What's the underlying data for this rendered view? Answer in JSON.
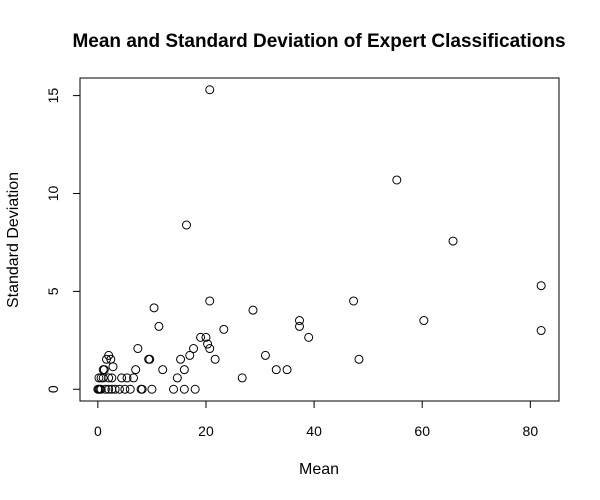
{
  "chart_data": {
    "type": "scatter",
    "title": "Mean and Standard Deviation of Expert Classifications",
    "xlabel": "Mean",
    "ylabel": "Standard Deviation",
    "xlim": [
      -3.3,
      85.3
    ],
    "ylim": [
      -0.6,
      15.9
    ],
    "xticks": [
      0,
      20,
      40,
      60,
      80
    ],
    "yticks": [
      0,
      5,
      10,
      15
    ],
    "grid": false,
    "legend": "none",
    "points": [
      {
        "x": 0,
        "y": 0
      },
      {
        "x": 0.2,
        "y": 0
      },
      {
        "x": 0.4,
        "y": 0
      },
      {
        "x": 0.6,
        "y": 0
      },
      {
        "x": 0.2,
        "y": 0.58
      },
      {
        "x": 0.6,
        "y": 0.58
      },
      {
        "x": 1.0,
        "y": 0.58
      },
      {
        "x": 1.0,
        "y": 1.0
      },
      {
        "x": 1.2,
        "y": 1.0
      },
      {
        "x": 1.4,
        "y": 0
      },
      {
        "x": 2.0,
        "y": 0
      },
      {
        "x": 2.6,
        "y": 0
      },
      {
        "x": 3.2,
        "y": 0
      },
      {
        "x": 1.6,
        "y": 1.53
      },
      {
        "x": 2.0,
        "y": 1.73
      },
      {
        "x": 2.4,
        "y": 1.53
      },
      {
        "x": 2.0,
        "y": 0.58
      },
      {
        "x": 2.6,
        "y": 0.58
      },
      {
        "x": 2.8,
        "y": 1.15
      },
      {
        "x": 4.0,
        "y": 0
      },
      {
        "x": 4.4,
        "y": 0.58
      },
      {
        "x": 5.0,
        "y": 0
      },
      {
        "x": 5.4,
        "y": 0.58
      },
      {
        "x": 6.0,
        "y": 0
      },
      {
        "x": 6.6,
        "y": 0.58
      },
      {
        "x": 7.0,
        "y": 1.0
      },
      {
        "x": 7.4,
        "y": 2.08
      },
      {
        "x": 8.0,
        "y": 0
      },
      {
        "x": 8.2,
        "y": 0
      },
      {
        "x": 9.4,
        "y": 1.53
      },
      {
        "x": 9.6,
        "y": 1.53
      },
      {
        "x": 10.0,
        "y": 0
      },
      {
        "x": 10.4,
        "y": 4.16
      },
      {
        "x": 11.3,
        "y": 3.21
      },
      {
        "x": 12.0,
        "y": 1.0
      },
      {
        "x": 14.0,
        "y": 0
      },
      {
        "x": 14.7,
        "y": 0.58
      },
      {
        "x": 15.3,
        "y": 1.53
      },
      {
        "x": 16.0,
        "y": 0
      },
      {
        "x": 16.0,
        "y": 1.0
      },
      {
        "x": 16.4,
        "y": 8.39
      },
      {
        "x": 17.0,
        "y": 1.73
      },
      {
        "x": 17.7,
        "y": 2.08
      },
      {
        "x": 18.0,
        "y": 0
      },
      {
        "x": 19.0,
        "y": 2.65
      },
      {
        "x": 20.0,
        "y": 2.65
      },
      {
        "x": 20.3,
        "y": 2.31
      },
      {
        "x": 20.7,
        "y": 2.08
      },
      {
        "x": 20.7,
        "y": 4.51
      },
      {
        "x": 20.7,
        "y": 15.3
      },
      {
        "x": 21.7,
        "y": 1.53
      },
      {
        "x": 23.3,
        "y": 3.06
      },
      {
        "x": 26.7,
        "y": 0.58
      },
      {
        "x": 28.7,
        "y": 4.04
      },
      {
        "x": 31.0,
        "y": 1.73
      },
      {
        "x": 33.0,
        "y": 1.0
      },
      {
        "x": 35.0,
        "y": 1.0
      },
      {
        "x": 37.3,
        "y": 3.21
      },
      {
        "x": 37.3,
        "y": 3.51
      },
      {
        "x": 39.0,
        "y": 2.65
      },
      {
        "x": 47.3,
        "y": 4.51
      },
      {
        "x": 48.3,
        "y": 1.53
      },
      {
        "x": 55.3,
        "y": 10.69
      },
      {
        "x": 60.3,
        "y": 3.51
      },
      {
        "x": 65.7,
        "y": 7.57
      },
      {
        "x": 82.0,
        "y": 3.0
      },
      {
        "x": 82.0,
        "y": 5.29
      }
    ]
  }
}
